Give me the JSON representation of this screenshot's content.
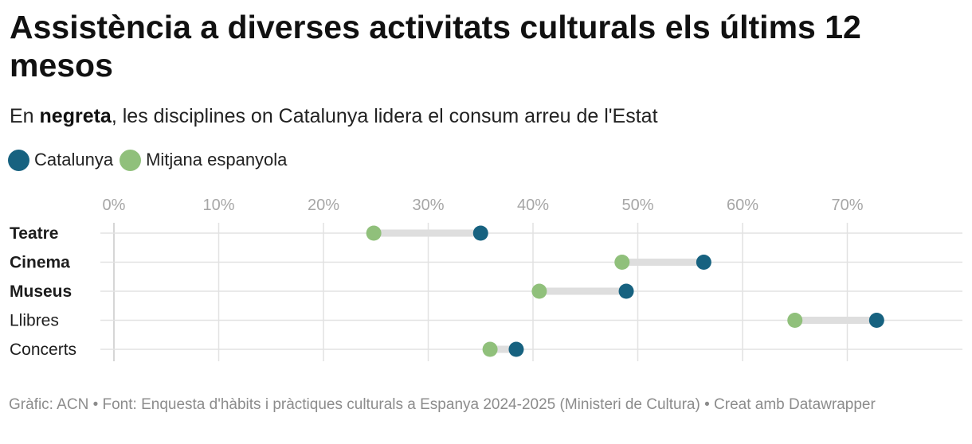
{
  "title": "Assistència a diverses activitats culturals els últims 12 mesos",
  "subtitle": {
    "prefix": "En ",
    "bold": "negreta",
    "suffix": ", les disciplines on Catalunya lidera el consum arreu de l'Estat"
  },
  "colors": {
    "catalunya": "#176280",
    "spain": "#90c07b",
    "connector": "#dedede",
    "grid": "#e2e2e2",
    "tick_label": "#a6a6a6"
  },
  "legend": [
    {
      "label": "Catalunya",
      "color": "#176280"
    },
    {
      "label": "Mitjana espanyola",
      "color": "#90c07b"
    }
  ],
  "chart_data": {
    "type": "dot-range",
    "title": "Assistència a diverses activitats culturals els últims 12 mesos",
    "subtitle": "En negreta, les disciplines on Catalunya lidera el consum arreu de l'Estat",
    "xlim": [
      0,
      81
    ],
    "ticks": [
      0,
      10,
      20,
      30,
      40,
      50,
      60,
      70
    ],
    "tick_labels": [
      "0%",
      "10%",
      "20%",
      "30%",
      "40%",
      "50%",
      "60%",
      "70%"
    ],
    "legend_position": "top-left",
    "grid": true,
    "categories": [
      "Teatre",
      "Cinema",
      "Museus",
      "Llibres",
      "Concerts"
    ],
    "bold_categories": [
      "Teatre",
      "Cinema",
      "Museus"
    ],
    "series": [
      {
        "name": "Catalunya",
        "values": [
          35.0,
          56.3,
          48.9,
          72.8,
          38.4
        ]
      },
      {
        "name": "Mitjana espanyola",
        "values": [
          24.8,
          48.5,
          40.6,
          65.0,
          35.9
        ]
      }
    ]
  },
  "footer": "Gràfic: ACN • Font: Enquesta d'hàbits i pràctiques culturals a Espanya 2024-2025 (Ministeri de Cultura) • Creat amb Datawrapper"
}
